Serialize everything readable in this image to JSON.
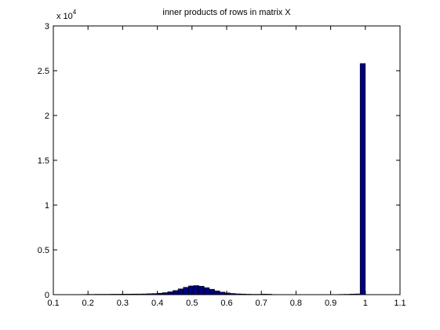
{
  "chart_data": {
    "type": "histogram",
    "title": "inner products of rows in matrix X",
    "y_multiplier": {
      "base": "x 10",
      "exponent": "4"
    },
    "bins": [
      0.175,
      0.19,
      0.205,
      0.22,
      0.235,
      0.25,
      0.265,
      0.28,
      0.295,
      0.31,
      0.325,
      0.34,
      0.355,
      0.37,
      0.385,
      0.4,
      0.415,
      0.43,
      0.445,
      0.46,
      0.475,
      0.49,
      0.505,
      0.52,
      0.535,
      0.55,
      0.565,
      0.58,
      0.595,
      0.61,
      0.625,
      0.64,
      0.655,
      0.67,
      0.685,
      0.7,
      0.715,
      0.73,
      0.745,
      0.76,
      0.775,
      0.79,
      0.805,
      0.82,
      0.835,
      0.85,
      0.865,
      0.88,
      0.895,
      0.91,
      0.925,
      0.94,
      0.955,
      0.97,
      0.985,
      1.0
    ],
    "values": [
      0.002,
      0.003,
      0.003,
      0.004,
      0.004,
      0.004,
      0.005,
      0.005,
      0.006,
      0.006,
      0.007,
      0.007,
      0.008,
      0.01,
      0.012,
      0.016,
      0.022,
      0.032,
      0.046,
      0.064,
      0.082,
      0.097,
      0.101,
      0.094,
      0.078,
      0.06,
      0.042,
      0.028,
      0.019,
      0.013,
      0.009,
      0.007,
      0.005,
      0.004,
      0.004,
      0.006,
      0.005,
      0.002,
      0.001,
      0.001,
      0,
      0,
      0,
      0.001,
      0,
      0,
      0.001,
      0,
      0,
      0.002,
      0.003,
      0.004,
      0.006,
      0.008,
      2.58
    ],
    "color": "#00007f",
    "edgecolor": "#000000",
    "xlim": [
      0.1,
      1.1
    ],
    "xticks": [
      0.1,
      0.2,
      0.3,
      0.4,
      0.5,
      0.6,
      0.7,
      0.8,
      0.9,
      1,
      1.1
    ],
    "ylim": [
      0,
      3
    ],
    "yticks": [
      0,
      0.5,
      1,
      1.5,
      2,
      2.5,
      3
    ]
  }
}
